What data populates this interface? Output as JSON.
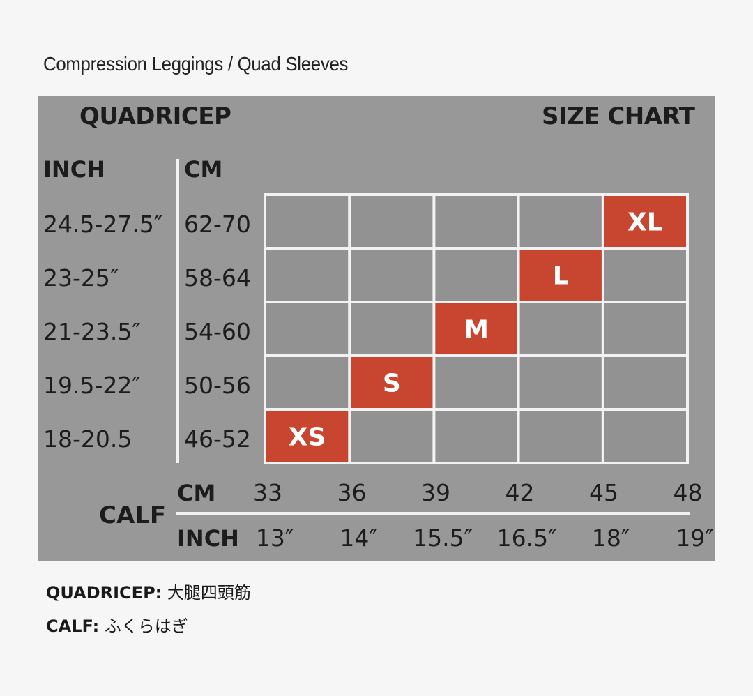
{
  "title": "Compression Leggings / Quad Sleeves",
  "header_left": "QUADRICEP",
  "header_right": "SIZE CHART",
  "y_unit_inch": "INCH",
  "y_unit_cm": "CM",
  "x_group_label": "CALF",
  "x_unit_cm": "CM",
  "x_unit_inch": "INCH",
  "notes": [
    {
      "key": "QUADRICEP:",
      "value": "大腿四頭筋"
    },
    {
      "key": "CALF:",
      "value": "ふくらはぎ"
    }
  ],
  "colors": {
    "panel": "#989898",
    "cell": "#929292",
    "accent": "#c8452f",
    "grid": "#f2f2f2"
  },
  "chart_data": {
    "type": "heatmap",
    "title": "SIZE CHART",
    "x_ticks_cm": [
      "33",
      "36",
      "39",
      "42",
      "45",
      "48"
    ],
    "x_ticks_inch": [
      "13″",
      "14″",
      "15.5″",
      "16.5″",
      "18″",
      "19″"
    ],
    "rows_top_to_bottom": [
      {
        "inch": "24.5-27.5″",
        "cm": "62-70"
      },
      {
        "inch": "23-25″",
        "cm": "58-64"
      },
      {
        "inch": "21-23.5″",
        "cm": "54-60"
      },
      {
        "inch": "19.5-22″",
        "cm": "50-56"
      },
      {
        "inch": "18-20.5",
        "cm": "46-52"
      }
    ],
    "sizes": [
      {
        "label": "XS",
        "row": 4,
        "col": 0
      },
      {
        "label": "S",
        "row": 3,
        "col": 1
      },
      {
        "label": "M",
        "row": 2,
        "col": 2
      },
      {
        "label": "L",
        "row": 1,
        "col": 3
      },
      {
        "label": "XL",
        "row": 0,
        "col": 4
      }
    ]
  }
}
